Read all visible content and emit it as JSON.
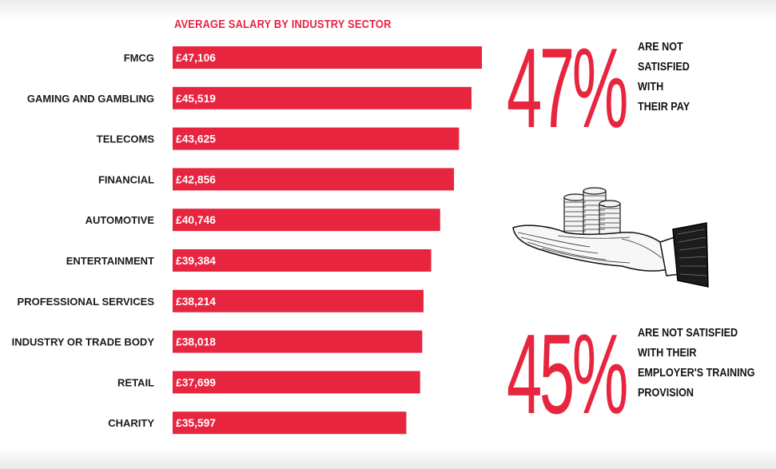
{
  "colors": {
    "accent": "#e8253f",
    "bar": "#e8253f",
    "text": "#111111"
  },
  "chart_data": {
    "type": "bar",
    "orientation": "horizontal",
    "title": "AVERAGE SALARY BY INDUSTRY SECTOR",
    "categories": [
      "FMCG",
      "GAMING AND GAMBLING",
      "TELECOMS",
      "FINANCIAL",
      "AUTOMOTIVE",
      "ENTERTAINMENT",
      "PROFESSIONAL SERVICES",
      "INDUSTRY OR TRADE BODY",
      "RETAIL",
      "CHARITY"
    ],
    "values": [
      47106,
      45519,
      43625,
      42856,
      40746,
      39384,
      38214,
      38018,
      37699,
      35597
    ],
    "value_labels": [
      "£47,106",
      "£45,519",
      "£43,625",
      "£42,856",
      "£40,746",
      "£39,384",
      "£38,214",
      "£38,018",
      "£37,699",
      "£35,597"
    ],
    "xlim": [
      0,
      47106
    ],
    "grid": false,
    "legend": "none"
  },
  "stats": [
    {
      "value": "47%",
      "caption": [
        "ARE NOT",
        "SATISFIED",
        "WITH",
        "THEIR PAY"
      ]
    },
    {
      "value": "45%",
      "caption": [
        "ARE NOT SATISFIED",
        "WITH THEIR",
        "EMPLOYER'S TRAINING",
        "PROVISION"
      ]
    }
  ],
  "illustration": {
    "icon": "hand-holding-coins-icon"
  }
}
